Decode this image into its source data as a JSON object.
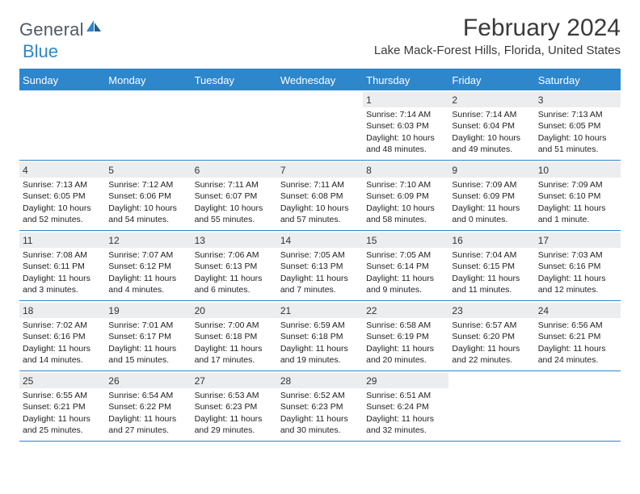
{
  "logo": {
    "text1": "General",
    "text2": "Blue"
  },
  "title": "February 2024",
  "location": "Lake Mack-Forest Hills, Florida, United States",
  "colors": {
    "brand": "#2e86cb",
    "headerText": "#ffffff",
    "stripBg": "#ecedef",
    "text": "#222222",
    "pageBg": "#ffffff"
  },
  "dayNames": [
    "Sunday",
    "Monday",
    "Tuesday",
    "Wednesday",
    "Thursday",
    "Friday",
    "Saturday"
  ],
  "weeks": [
    [
      null,
      null,
      null,
      null,
      {
        "n": "1",
        "sr": "7:14 AM",
        "ss": "6:03 PM",
        "dl": "10 hours and 48 minutes."
      },
      {
        "n": "2",
        "sr": "7:14 AM",
        "ss": "6:04 PM",
        "dl": "10 hours and 49 minutes."
      },
      {
        "n": "3",
        "sr": "7:13 AM",
        "ss": "6:05 PM",
        "dl": "10 hours and 51 minutes."
      }
    ],
    [
      {
        "n": "4",
        "sr": "7:13 AM",
        "ss": "6:05 PM",
        "dl": "10 hours and 52 minutes."
      },
      {
        "n": "5",
        "sr": "7:12 AM",
        "ss": "6:06 PM",
        "dl": "10 hours and 54 minutes."
      },
      {
        "n": "6",
        "sr": "7:11 AM",
        "ss": "6:07 PM",
        "dl": "10 hours and 55 minutes."
      },
      {
        "n": "7",
        "sr": "7:11 AM",
        "ss": "6:08 PM",
        "dl": "10 hours and 57 minutes."
      },
      {
        "n": "8",
        "sr": "7:10 AM",
        "ss": "6:09 PM",
        "dl": "10 hours and 58 minutes."
      },
      {
        "n": "9",
        "sr": "7:09 AM",
        "ss": "6:09 PM",
        "dl": "11 hours and 0 minutes."
      },
      {
        "n": "10",
        "sr": "7:09 AM",
        "ss": "6:10 PM",
        "dl": "11 hours and 1 minute."
      }
    ],
    [
      {
        "n": "11",
        "sr": "7:08 AM",
        "ss": "6:11 PM",
        "dl": "11 hours and 3 minutes."
      },
      {
        "n": "12",
        "sr": "7:07 AM",
        "ss": "6:12 PM",
        "dl": "11 hours and 4 minutes."
      },
      {
        "n": "13",
        "sr": "7:06 AM",
        "ss": "6:13 PM",
        "dl": "11 hours and 6 minutes."
      },
      {
        "n": "14",
        "sr": "7:05 AM",
        "ss": "6:13 PM",
        "dl": "11 hours and 7 minutes."
      },
      {
        "n": "15",
        "sr": "7:05 AM",
        "ss": "6:14 PM",
        "dl": "11 hours and 9 minutes."
      },
      {
        "n": "16",
        "sr": "7:04 AM",
        "ss": "6:15 PM",
        "dl": "11 hours and 11 minutes."
      },
      {
        "n": "17",
        "sr": "7:03 AM",
        "ss": "6:16 PM",
        "dl": "11 hours and 12 minutes."
      }
    ],
    [
      {
        "n": "18",
        "sr": "7:02 AM",
        "ss": "6:16 PM",
        "dl": "11 hours and 14 minutes."
      },
      {
        "n": "19",
        "sr": "7:01 AM",
        "ss": "6:17 PM",
        "dl": "11 hours and 15 minutes."
      },
      {
        "n": "20",
        "sr": "7:00 AM",
        "ss": "6:18 PM",
        "dl": "11 hours and 17 minutes."
      },
      {
        "n": "21",
        "sr": "6:59 AM",
        "ss": "6:18 PM",
        "dl": "11 hours and 19 minutes."
      },
      {
        "n": "22",
        "sr": "6:58 AM",
        "ss": "6:19 PM",
        "dl": "11 hours and 20 minutes."
      },
      {
        "n": "23",
        "sr": "6:57 AM",
        "ss": "6:20 PM",
        "dl": "11 hours and 22 minutes."
      },
      {
        "n": "24",
        "sr": "6:56 AM",
        "ss": "6:21 PM",
        "dl": "11 hours and 24 minutes."
      }
    ],
    [
      {
        "n": "25",
        "sr": "6:55 AM",
        "ss": "6:21 PM",
        "dl": "11 hours and 25 minutes."
      },
      {
        "n": "26",
        "sr": "6:54 AM",
        "ss": "6:22 PM",
        "dl": "11 hours and 27 minutes."
      },
      {
        "n": "27",
        "sr": "6:53 AM",
        "ss": "6:23 PM",
        "dl": "11 hours and 29 minutes."
      },
      {
        "n": "28",
        "sr": "6:52 AM",
        "ss": "6:23 PM",
        "dl": "11 hours and 30 minutes."
      },
      {
        "n": "29",
        "sr": "6:51 AM",
        "ss": "6:24 PM",
        "dl": "11 hours and 32 minutes."
      },
      null,
      null
    ]
  ],
  "labels": {
    "sunrise": "Sunrise: ",
    "sunset": "Sunset: ",
    "daylight": "Daylight: "
  }
}
